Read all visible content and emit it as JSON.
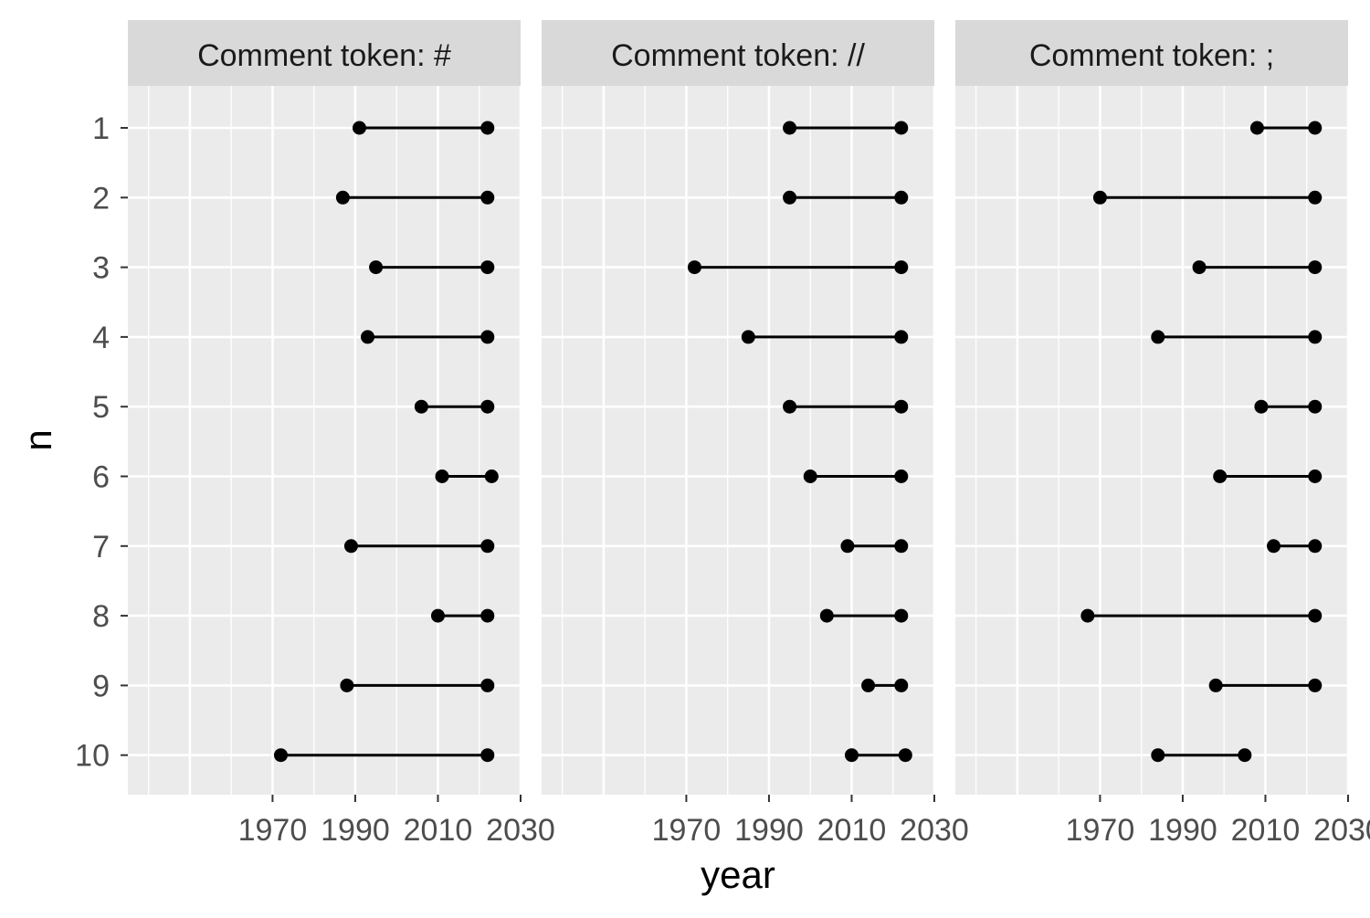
{
  "chart_data": {
    "type": "dumbbell",
    "xlabel": "year",
    "ylabel": "n",
    "xlim": [
      1935,
      2030
    ],
    "x_ticks": [
      1970,
      1990,
      2010,
      2030
    ],
    "x_tick_labels": [
      "1970",
      "1990",
      "2010",
      "2030"
    ],
    "y_categories": [
      "1",
      "2",
      "3",
      "4",
      "5",
      "6",
      "7",
      "8",
      "9",
      "10"
    ],
    "grid": true,
    "colors": {
      "panel_bg": "#ebebeb",
      "strip_bg": "#d9d9d9",
      "grid": "#ffffff",
      "mark": "#000000"
    },
    "facets": [
      {
        "strip_label": "Comment token: #",
        "segments": [
          {
            "n": "1",
            "start": 1991,
            "end": 2022
          },
          {
            "n": "2",
            "start": 1987,
            "end": 2022
          },
          {
            "n": "3",
            "start": 1995,
            "end": 2022
          },
          {
            "n": "4",
            "start": 1993,
            "end": 2022
          },
          {
            "n": "5",
            "start": 2006,
            "end": 2022
          },
          {
            "n": "6",
            "start": 2011,
            "end": 2023
          },
          {
            "n": "7",
            "start": 1989,
            "end": 2022
          },
          {
            "n": "8",
            "start": 2010,
            "end": 2022
          },
          {
            "n": "9",
            "start": 1988,
            "end": 2022
          },
          {
            "n": "10",
            "start": 1972,
            "end": 2022
          }
        ]
      },
      {
        "strip_label": "Comment token: //",
        "segments": [
          {
            "n": "1",
            "start": 1995,
            "end": 2022
          },
          {
            "n": "2",
            "start": 1995,
            "end": 2022
          },
          {
            "n": "3",
            "start": 1972,
            "end": 2022
          },
          {
            "n": "4",
            "start": 1985,
            "end": 2022
          },
          {
            "n": "5",
            "start": 1995,
            "end": 2022
          },
          {
            "n": "6",
            "start": 2000,
            "end": 2022
          },
          {
            "n": "7",
            "start": 2009,
            "end": 2022
          },
          {
            "n": "8",
            "start": 2004,
            "end": 2022
          },
          {
            "n": "9",
            "start": 2014,
            "end": 2022
          },
          {
            "n": "10",
            "start": 2010,
            "end": 2023
          }
        ]
      },
      {
        "strip_label": "Comment token: ;",
        "segments": [
          {
            "n": "1",
            "start": 2008,
            "end": 2022
          },
          {
            "n": "2",
            "start": 1970,
            "end": 2022
          },
          {
            "n": "3",
            "start": 1994,
            "end": 2022
          },
          {
            "n": "4",
            "start": 1984,
            "end": 2022
          },
          {
            "n": "5",
            "start": 2009,
            "end": 2022
          },
          {
            "n": "6",
            "start": 1999,
            "end": 2022
          },
          {
            "n": "7",
            "start": 2012,
            "end": 2022
          },
          {
            "n": "8",
            "start": 1967,
            "end": 2022
          },
          {
            "n": "9",
            "start": 1998,
            "end": 2022
          },
          {
            "n": "10",
            "start": 1984,
            "end": 2005
          }
        ]
      }
    ]
  }
}
